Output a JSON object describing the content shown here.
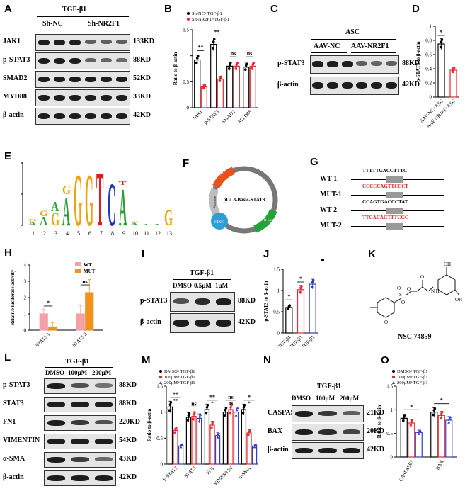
{
  "panels": {
    "A": {
      "letter": "A",
      "treatment": "TGF-β1",
      "groups": [
        "Sh-NC",
        "Sh-NR2F1"
      ],
      "rows": [
        {
          "label": "JAK1",
          "kd": "133KD"
        },
        {
          "label": "p-STAT3",
          "kd": "88KD"
        },
        {
          "label": "SMAD2",
          "kd": "52KD"
        },
        {
          "label": "MYD88",
          "kd": "33KD"
        },
        {
          "label": "β-actin",
          "kd": "42KD"
        }
      ]
    },
    "B": {
      "letter": "B"
    },
    "C": {
      "letter": "C",
      "title": "ASC",
      "groups": [
        "AAV-NC",
        "AAV-NR2F1"
      ],
      "rows": [
        {
          "label": "p-STAT3",
          "kd": "88KD"
        },
        {
          "label": "β-actin",
          "kd": "42KD"
        }
      ]
    },
    "D": {
      "letter": "D"
    },
    "E": {
      "letter": "E",
      "positions": [
        "1",
        "2",
        "3",
        "4",
        "5",
        "6",
        "7",
        "8",
        "9",
        "10",
        "11",
        "12",
        "13"
      ]
    },
    "F": {
      "letter": "F",
      "plasmid": "pGL3-Basic-STAT3",
      "segments": [
        "F-Luc",
        "Promoter",
        "STAT3",
        "R-Luc"
      ]
    },
    "G": {
      "letter": "G",
      "rows": [
        {
          "label": "WT-1",
          "seq": "TTTTTGACCTTTC"
        },
        {
          "label": "MUT-1",
          "seq": "CCCCCAGTTCCCT"
        },
        {
          "label": "WT-2",
          "seq": "CCAGTGACCCTAT"
        },
        {
          "label": "MUT-2",
          "seq": "TTGACAGTTTCGC"
        }
      ]
    },
    "H": {
      "letter": "H"
    },
    "I": {
      "letter": "I",
      "treatment": "TGF-β1",
      "doses": [
        "DMSO",
        "0.5μM",
        "1μM"
      ],
      "rows": [
        {
          "label": "p-STAT3",
          "kd": "88KD"
        },
        {
          "label": "β-actin",
          "kd": "42KD"
        }
      ]
    },
    "J": {
      "letter": "J"
    },
    "K": {
      "letter": "K",
      "compound": "NSC 74859",
      "atoms": {
        "o1": "O",
        "o2": "O",
        "s": "S",
        "o3": "O",
        "o4": "O",
        "nh": "N\nH",
        "oh": "OH",
        "oh2": "OH",
        "o5": "O"
      }
    },
    "L": {
      "letter": "L",
      "treatment": "TGF-β1",
      "doses": [
        "DMSO",
        "100μM",
        "200μM"
      ],
      "rows": [
        {
          "label": "p-STAT3",
          "kd": "88KD"
        },
        {
          "label": "STAT3",
          "kd": "88KD"
        },
        {
          "label": "FN1",
          "kd": "220KD"
        },
        {
          "label": "VIMENTIN",
          "kd": "54KD"
        },
        {
          "label": "α-SMA",
          "kd": "43KD"
        },
        {
          "label": "β-actin",
          "kd": "42KD"
        }
      ]
    },
    "M": {
      "letter": "M"
    },
    "N": {
      "letter": "N",
      "treatment": "TGF-β1",
      "doses": [
        "DMSO",
        "100μM",
        "200μM"
      ],
      "rows": [
        {
          "label": "CASPASE3",
          "kd": "21KD"
        },
        {
          "label": "BAX",
          "kd": "20KD"
        },
        {
          "label": "β-actin",
          "kd": "42KD"
        }
      ]
    },
    "O": {
      "letter": "O"
    }
  },
  "chart_data": [
    {
      "id": "B",
      "type": "bar",
      "ylabel": "Ratio to β-actin",
      "ylim": [
        0,
        1.5
      ],
      "yticks": [
        0,
        0.5,
        1.0,
        1.5
      ],
      "categories": [
        "JAK1",
        "P-STAT3",
        "SMAD2",
        "MYD88"
      ],
      "series": [
        {
          "name": "Sh-NC+TGF-β1",
          "color": "#000000",
          "values": [
            0.92,
            1.22,
            0.8,
            0.78
          ]
        },
        {
          "name": "Sh-NR2F1+TGF-β1",
          "color": "#e8262c",
          "values": [
            0.4,
            0.55,
            0.8,
            0.8
          ]
        }
      ],
      "sig": [
        "**",
        "**",
        "ns",
        "ns"
      ]
    },
    {
      "id": "D",
      "type": "bar",
      "ylabel": "p-STAT3 to β-actin",
      "ylim": [
        0,
        1.0
      ],
      "yticks": [
        0,
        0.2,
        0.4,
        0.6,
        0.8,
        1.0
      ],
      "categories": [
        "AAV-NC+ASC",
        "AAV-NR2F1+ASC"
      ],
      "series": [
        {
          "name": "",
          "colors": [
            "#000000",
            "#e8262c"
          ],
          "values": [
            0.75,
            0.38
          ]
        }
      ],
      "sig": [
        "*"
      ]
    },
    {
      "id": "E",
      "type": "bar",
      "yticks": [
        0,
        1,
        2
      ],
      "ylabel": "bits"
    },
    {
      "id": "H",
      "type": "bar",
      "ylabel": "Relative luciferase activity",
      "ylim": [
        0,
        4
      ],
      "yticks": [
        0,
        1,
        2,
        3,
        4
      ],
      "categories": [
        "STAT3-1",
        "STAT3-2"
      ],
      "series": [
        {
          "name": "WT",
          "color": "#f4a0a8",
          "values": [
            1.0,
            1.0
          ]
        },
        {
          "name": "MUT",
          "color": "#f0921e",
          "values": [
            0.2,
            2.3
          ]
        }
      ],
      "errors": [
        [
          0.3,
          0.5
        ],
        [
          0.25,
          0.8
        ]
      ],
      "sig": [
        "*",
        "ns"
      ]
    },
    {
      "id": "J",
      "type": "bar",
      "ylabel": "p-STAT3 to β-actin",
      "ylim": [
        0,
        1.5
      ],
      "yticks": [
        0,
        0.5,
        1.0,
        1.5
      ],
      "categories": [
        "DMSO+TGF-β1",
        "0.5μM+TGF-β1",
        "1μM+TGF-β1"
      ],
      "series": [
        {
          "name": "",
          "colors": [
            "#000000",
            "#e8262c",
            "#2f3fc9"
          ],
          "values": [
            0.6,
            1.02,
            1.15
          ]
        }
      ],
      "sig": [
        "*",
        "*"
      ]
    },
    {
      "id": "M",
      "type": "bar",
      "ylabel": "Ratio to β-actin",
      "ylim": [
        0,
        1.5
      ],
      "yticks": [
        0,
        0.5,
        1.0,
        1.5
      ],
      "categories": [
        "P-STAT3",
        "STAT3",
        "FN1",
        "VIMENTIN",
        "α-SMA"
      ],
      "series": [
        {
          "name": "DMSO+TGF-β1",
          "color": "#000000",
          "values": [
            1.1,
            0.9,
            1.05,
            1.0,
            1.05
          ]
        },
        {
          "name": "100μM+TGF-β1",
          "color": "#e8262c",
          "values": [
            0.65,
            0.92,
            0.75,
            1.05,
            0.6
          ]
        },
        {
          "name": "200μM+TGF-β1",
          "color": "#2f3fc9",
          "values": [
            0.35,
            0.88,
            0.55,
            1.0,
            0.35
          ]
        }
      ],
      "sig": [
        "**",
        "ns",
        "**",
        "ns",
        "*"
      ],
      "sig2": [
        "**",
        "",
        "*",
        "ns",
        "*"
      ]
    },
    {
      "id": "O",
      "type": "bar",
      "ylabel": "Ratio to β-actin",
      "ylim": [
        0,
        1.5
      ],
      "yticks": [
        0,
        0.5,
        1.0,
        1.5
      ],
      "categories": [
        "CASPASE3",
        "BAX"
      ],
      "series": [
        {
          "name": "DMSO+TGF-β1",
          "color": "#000000",
          "values": [
            0.82,
            0.95
          ]
        },
        {
          "name": "100μM+TGF-β1",
          "color": "#e8262c",
          "values": [
            0.72,
            0.88
          ]
        },
        {
          "name": "200μM+TGF-β1",
          "color": "#2f3fc9",
          "values": [
            0.52,
            0.78
          ]
        }
      ],
      "sig": [
        "*",
        "*"
      ]
    }
  ]
}
